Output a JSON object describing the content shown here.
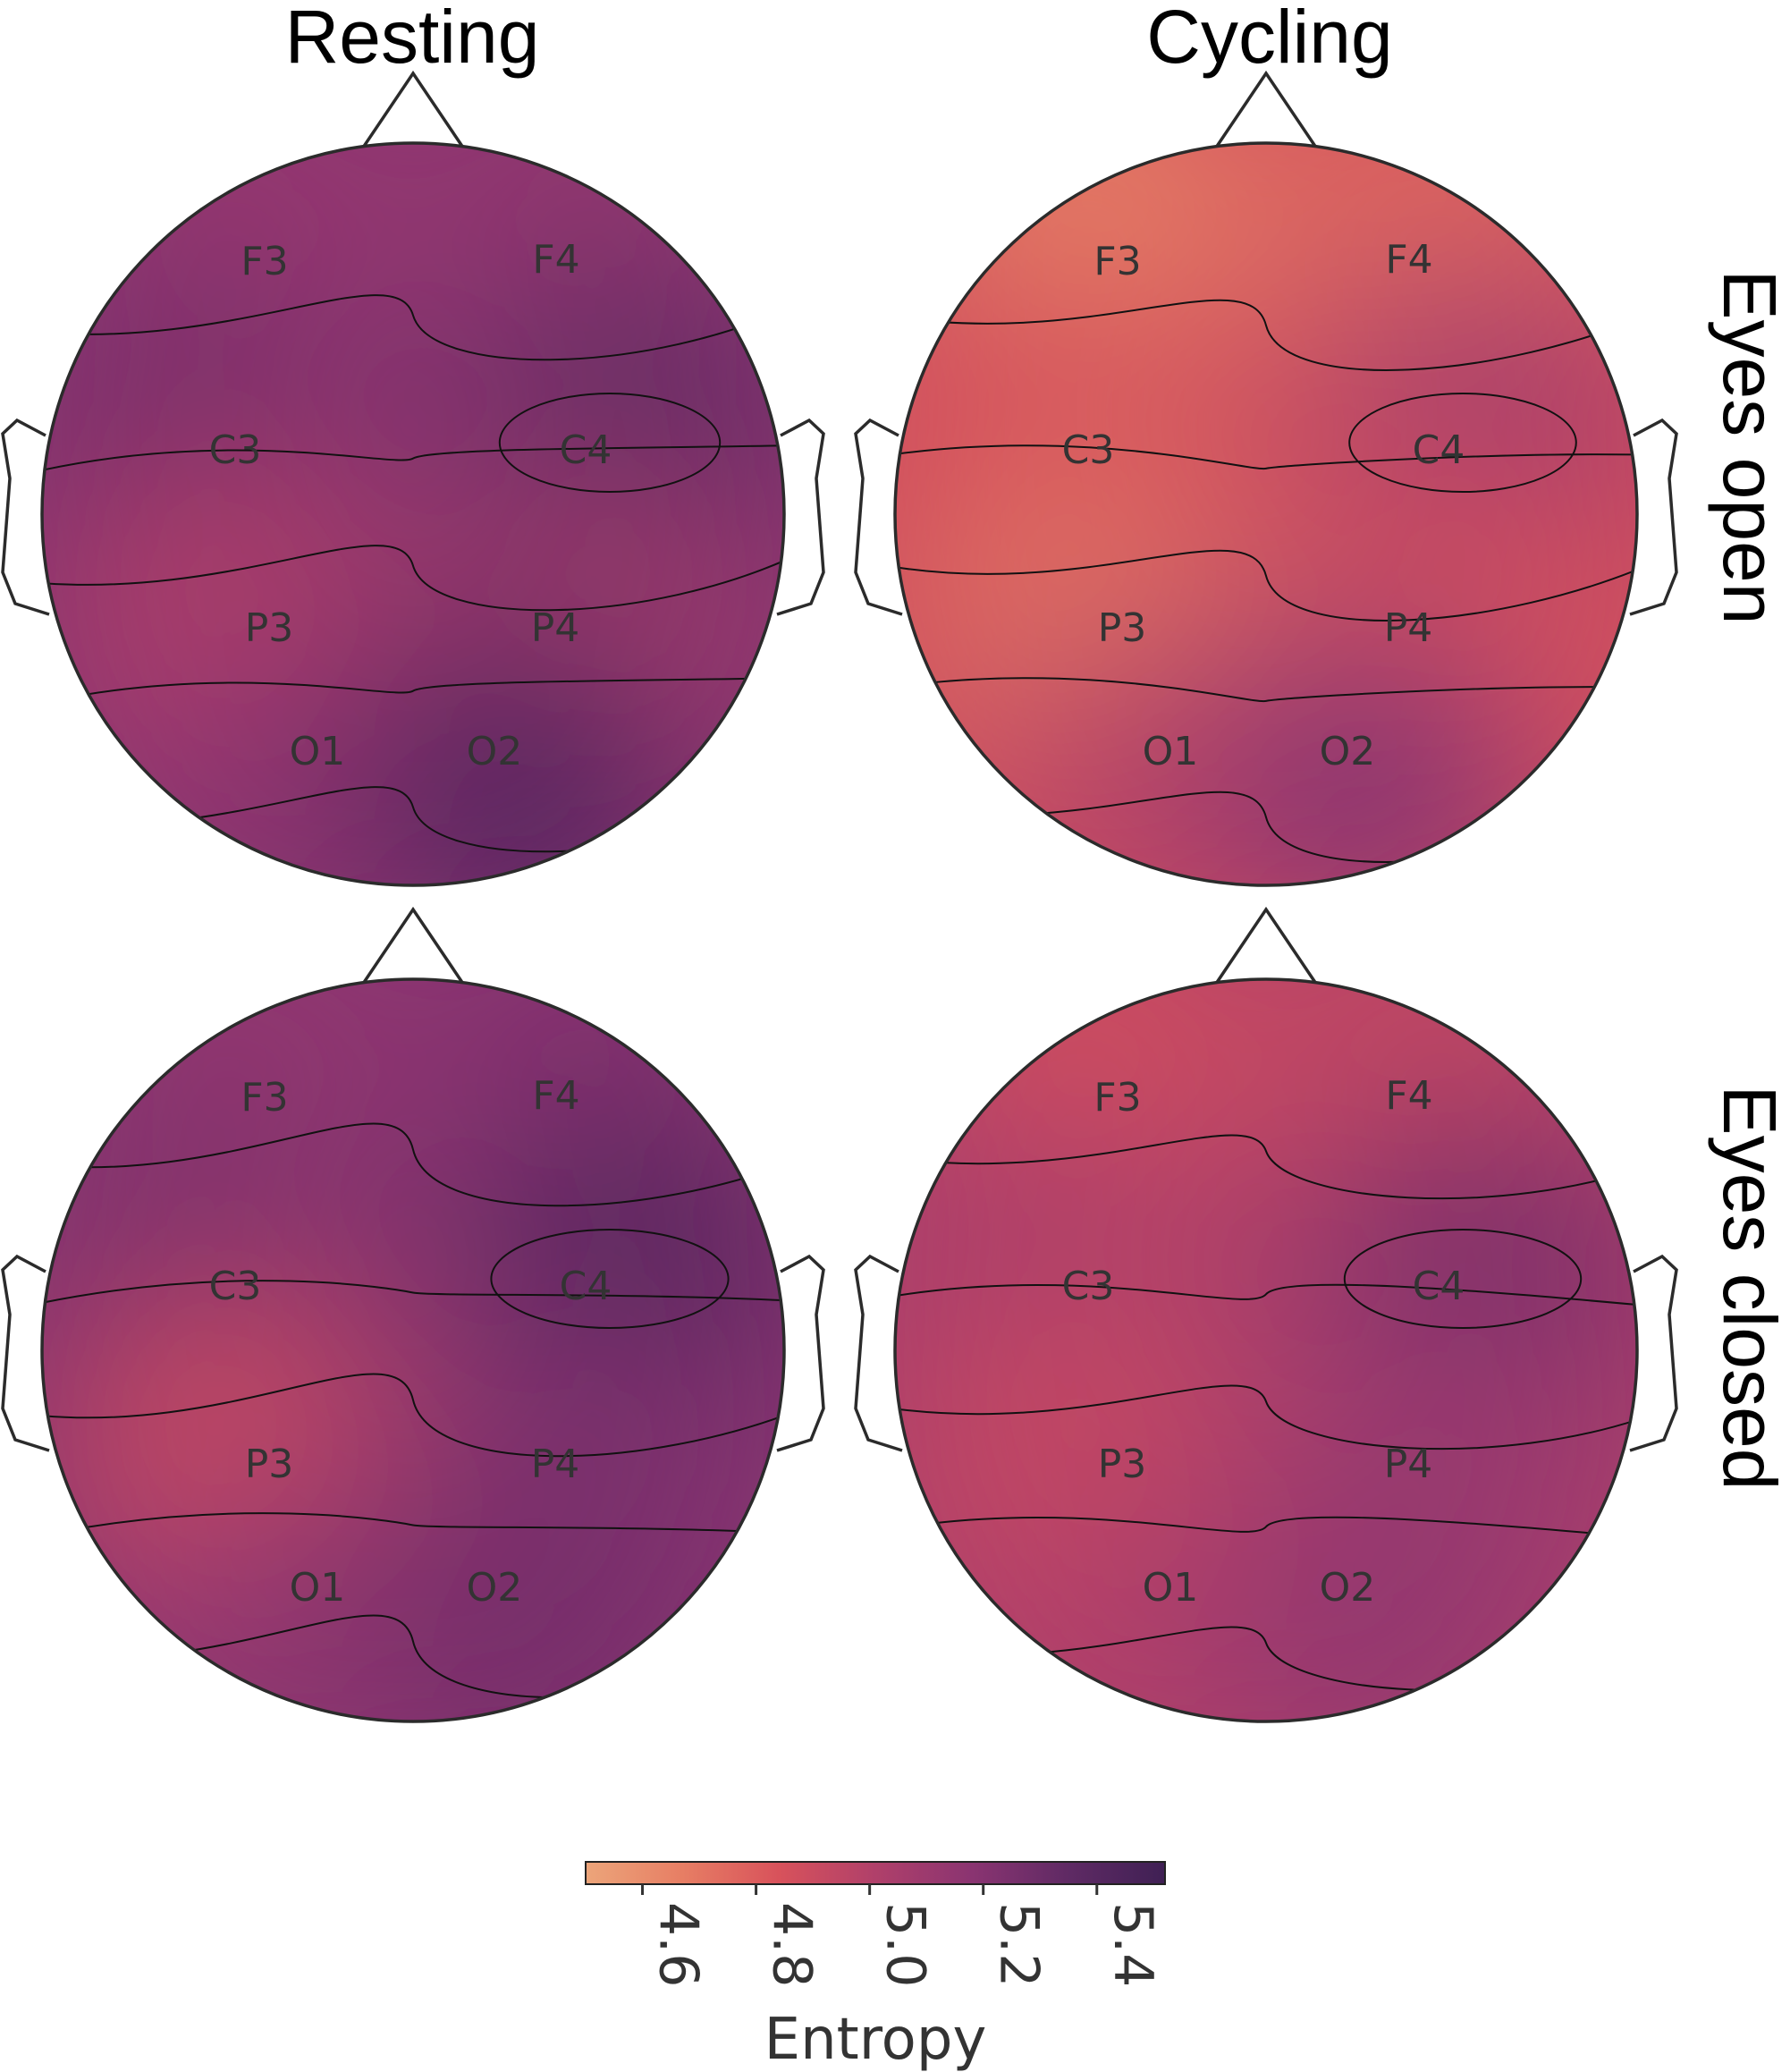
{
  "chart_data": {
    "type": "heatmap",
    "description_type": "eeg-topomap-grid",
    "columns": [
      "Resting",
      "Cycling"
    ],
    "rows": [
      "Eyes open",
      "Eyes closed"
    ],
    "electrodes": [
      "F3",
      "F4",
      "C3",
      "C4",
      "P3",
      "P4",
      "O1",
      "O2"
    ],
    "panels": [
      {
        "column": "Resting",
        "row": "Eyes open",
        "values": {
          "F3": 5.12,
          "F4": 5.14,
          "C3": 5.26,
          "C4": 5.36,
          "P3": 4.98,
          "P4": 5.07,
          "O1": 5.16,
          "O2": 5.38
        }
      },
      {
        "column": "Cycling",
        "row": "Eyes open",
        "values": {
          "F3": 4.66,
          "F4": 4.76,
          "C3": 4.86,
          "C4": 5.08,
          "P3": 4.7,
          "P4": 4.84,
          "O1": 4.97,
          "O2": 5.18
        }
      },
      {
        "column": "Resting",
        "row": "Eyes closed",
        "values": {
          "F3": 5.14,
          "F4": 5.2,
          "C3": 5.24,
          "C4": 5.42,
          "P3": 4.86,
          "P4": 5.22,
          "O1": 5.14,
          "O2": 5.26
        }
      },
      {
        "column": "Cycling",
        "row": "Eyes closed",
        "values": {
          "F3": 4.86,
          "F4": 4.92,
          "C3": 5.04,
          "C4": 5.26,
          "P3": 4.9,
          "P4": 5.1,
          "O1": 5.0,
          "O2": 5.14
        }
      }
    ],
    "colorbar": {
      "label": "Entropy",
      "ticks": [
        "4.6",
        "4.8",
        "5.0",
        "5.2",
        "5.4"
      ],
      "range": [
        4.5,
        5.52
      ],
      "colormap": "flare",
      "stops": [
        "#eca57a",
        "#e77e64",
        "#d8525b",
        "#b0406a",
        "#8a3471",
        "#5f2a64",
        "#3f2054"
      ]
    }
  }
}
